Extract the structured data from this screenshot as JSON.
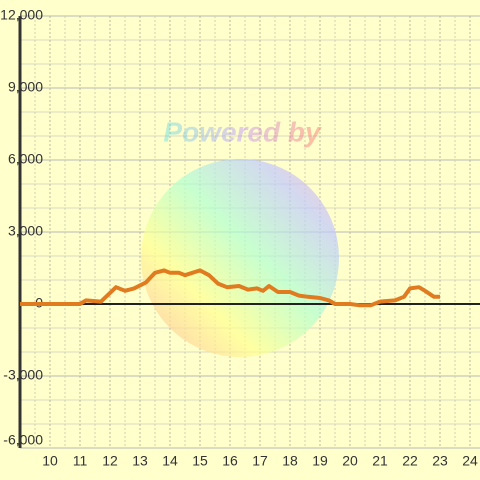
{
  "chart_data": {
    "type": "line",
    "annotation": "Powered by",
    "x": [
      9,
      11,
      11.2,
      11.7,
      12.2,
      12.5,
      12.8,
      13.2,
      13.5,
      13.8,
      14,
      14.3,
      14.5,
      15,
      15.3,
      15.6,
      15.9,
      16.3,
      16.6,
      16.9,
      17.1,
      17.3,
      17.6,
      18,
      18.3,
      18.6,
      19,
      19.3,
      19.5,
      20,
      20.3,
      20.7,
      21,
      21.5,
      21.8,
      22,
      22.3,
      22.5,
      22.8,
      23
    ],
    "series": [
      {
        "color": "#e07b20",
        "values": [
          0,
          0,
          150,
          100,
          700,
          550,
          650,
          900,
          1300,
          1400,
          1300,
          1300,
          1200,
          1400,
          1200,
          850,
          700,
          750,
          600,
          650,
          550,
          750,
          500,
          500,
          350,
          300,
          250,
          150,
          0,
          0,
          -50,
          -50,
          100,
          150,
          300,
          650,
          700,
          550,
          300,
          300
        ]
      }
    ],
    "xlim": [
      9,
      24
    ],
    "xticks": [
      10,
      11,
      12,
      13,
      14,
      15,
      16,
      17,
      18,
      19,
      20,
      21,
      22,
      23,
      24
    ],
    "ylim": [
      -6000,
      12000
    ],
    "yticks": [
      {
        "value": -6000,
        "label": "-6,000"
      },
      {
        "value": -3000,
        "label": "-3,000"
      },
      0,
      {
        "value": 3000,
        "label": "3,000"
      },
      {
        "value": 6000,
        "label": "6,000"
      },
      {
        "value": 9000,
        "label": "9,000"
      },
      {
        "value": 12000,
        "label": "12,000"
      }
    ],
    "grid": true
  }
}
